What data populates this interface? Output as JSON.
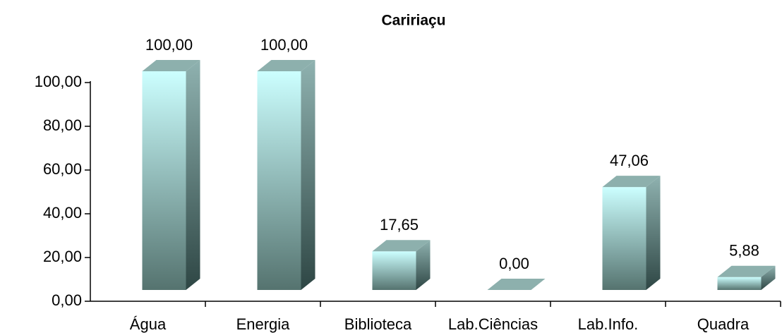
{
  "chart_data": {
    "type": "bar3d",
    "title": "Caririaçu",
    "categories": [
      "Água",
      "Energia",
      "Biblioteca",
      "Lab.Ciências",
      "Lab.Info.",
      "Quadra"
    ],
    "values": [
      100,
      100,
      17.65,
      0,
      47.06,
      5.88
    ],
    "value_labels": [
      "100,00",
      "100,00",
      "17,65",
      "0,00",
      "47,06",
      "5,88"
    ],
    "ylim": [
      0,
      100
    ],
    "yticks": [
      {
        "value": 0,
        "label": "0,00"
      },
      {
        "value": 20,
        "label": "20,00"
      },
      {
        "value": 40,
        "label": "40,00"
      },
      {
        "value": 60,
        "label": "60,00"
      },
      {
        "value": 80,
        "label": "80,00"
      },
      {
        "value": 100,
        "label": "100,00"
      }
    ],
    "color": "#ccffff"
  }
}
